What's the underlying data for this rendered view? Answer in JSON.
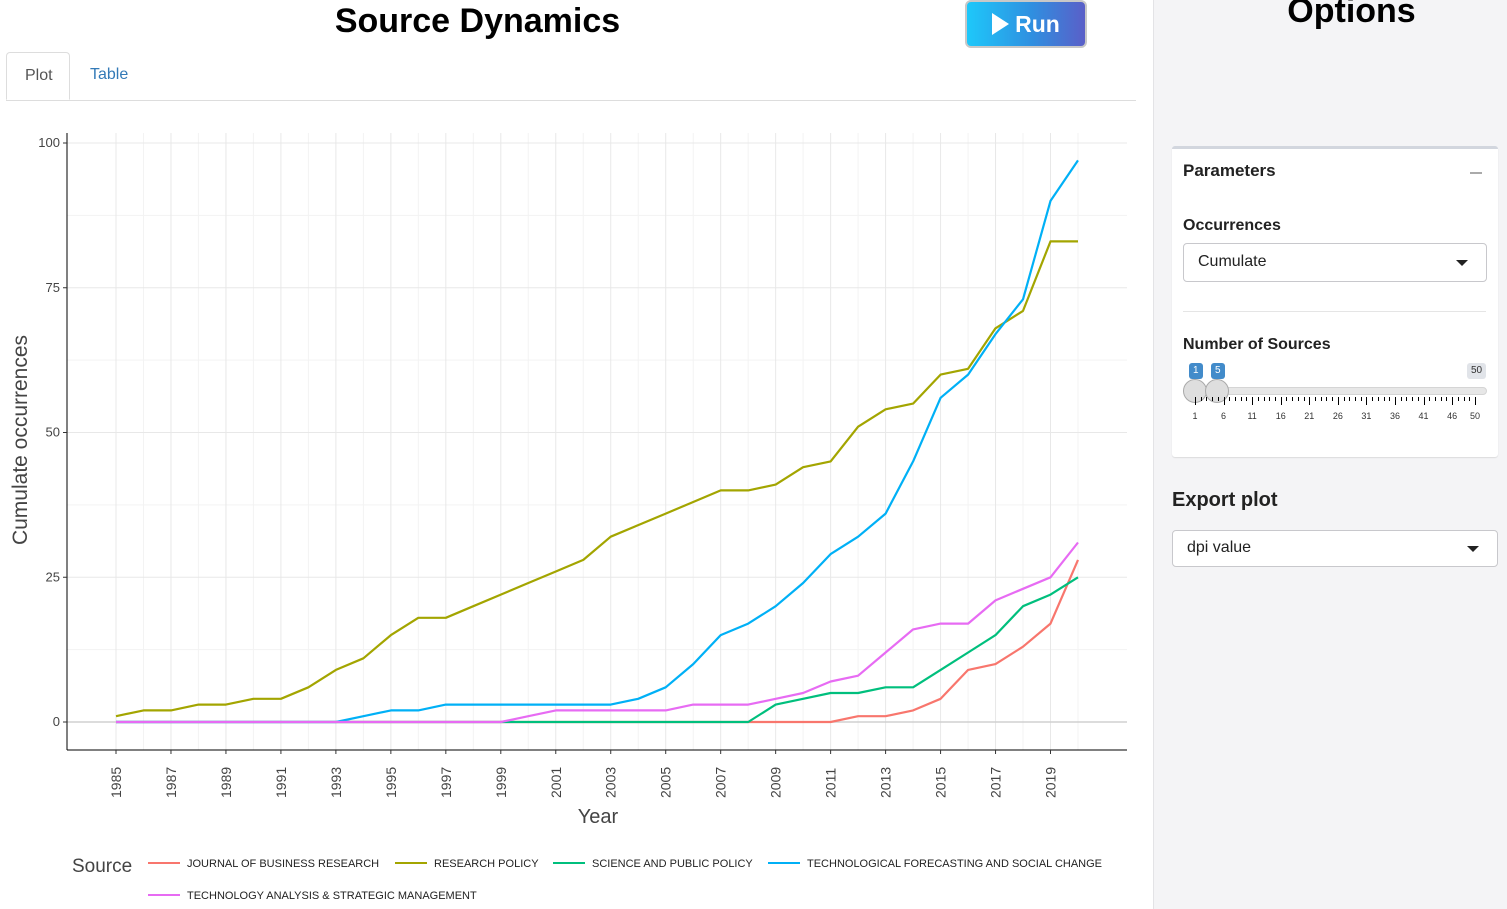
{
  "header": {
    "title": "Source Dynamics",
    "run_label": "Run"
  },
  "tabs": [
    "Plot",
    "Table"
  ],
  "sidebar": {
    "title": "Options",
    "parameters": {
      "title": "Parameters",
      "occurrences_label": "Occurrences",
      "occurrences_value": "Cumulate",
      "num_sources_label": "Number of Sources",
      "slider": {
        "min": 1,
        "max": 50,
        "range": [
          1,
          5
        ],
        "min_label": "1",
        "max_label": "50",
        "low_label": "1",
        "high_label": "5",
        "tick_labels": [
          "1",
          "6",
          "11",
          "16",
          "21",
          "26",
          "31",
          "36",
          "41",
          "46",
          "50"
        ]
      }
    },
    "export": {
      "title": "Export plot",
      "dpi_value": "dpi value"
    }
  },
  "chart_data": {
    "type": "line",
    "xlabel": "Year",
    "ylabel": "Cumulate occurrences",
    "legend_title": "Source",
    "legend_position": "bottom",
    "grid": true,
    "xlim": [
      1985,
      2020
    ],
    "ylim": [
      0,
      100
    ],
    "x_ticks": [
      1985,
      1987,
      1989,
      1991,
      1993,
      1995,
      1997,
      1999,
      2001,
      2003,
      2005,
      2007,
      2009,
      2011,
      2013,
      2015,
      2017,
      2019
    ],
    "y_ticks": [
      0,
      25,
      50,
      75,
      100
    ],
    "x": [
      1985,
      1986,
      1987,
      1988,
      1989,
      1990,
      1991,
      1992,
      1993,
      1994,
      1995,
      1996,
      1997,
      1998,
      1999,
      2000,
      2001,
      2002,
      2003,
      2004,
      2005,
      2006,
      2007,
      2008,
      2009,
      2010,
      2011,
      2012,
      2013,
      2014,
      2015,
      2016,
      2017,
      2018,
      2019,
      2020
    ],
    "series": [
      {
        "name": "JOURNAL OF BUSINESS RESEARCH",
        "color": "#F8766D",
        "values": [
          0,
          0,
          0,
          0,
          0,
          0,
          0,
          0,
          0,
          0,
          0,
          0,
          0,
          0,
          0,
          0,
          0,
          0,
          0,
          0,
          0,
          0,
          0,
          0,
          0,
          0,
          0,
          1,
          1,
          2,
          4,
          9,
          10,
          13,
          17,
          28
        ]
      },
      {
        "name": "RESEARCH POLICY",
        "color": "#A3A500",
        "values": [
          1,
          2,
          2,
          3,
          3,
          4,
          4,
          6,
          9,
          11,
          15,
          18,
          18,
          20,
          22,
          24,
          26,
          28,
          32,
          34,
          36,
          38,
          40,
          40,
          41,
          44,
          45,
          51,
          54,
          55,
          60,
          61,
          68,
          71,
          83,
          83
        ]
      },
      {
        "name": "SCIENCE AND PUBLIC POLICY",
        "color": "#00BF7D",
        "values": [
          0,
          0,
          0,
          0,
          0,
          0,
          0,
          0,
          0,
          0,
          0,
          0,
          0,
          0,
          0,
          0,
          0,
          0,
          0,
          0,
          0,
          0,
          0,
          0,
          3,
          4,
          5,
          5,
          6,
          6,
          9,
          12,
          15,
          20,
          22,
          25
        ]
      },
      {
        "name": "TECHNOLOGICAL FORECASTING AND SOCIAL CHANGE",
        "color": "#00B0F6",
        "values": [
          0,
          0,
          0,
          0,
          0,
          0,
          0,
          0,
          0,
          1,
          2,
          2,
          3,
          3,
          3,
          3,
          3,
          3,
          3,
          4,
          6,
          10,
          15,
          17,
          20,
          24,
          29,
          32,
          36,
          45,
          56,
          60,
          67,
          73,
          90,
          97
        ]
      },
      {
        "name": "TECHNOLOGY ANALYSIS & STRATEGIC MANAGEMENT",
        "color": "#E76BF3",
        "values": [
          0,
          0,
          0,
          0,
          0,
          0,
          0,
          0,
          0,
          0,
          0,
          0,
          0,
          0,
          0,
          1,
          2,
          2,
          2,
          2,
          2,
          3,
          3,
          3,
          4,
          5,
          7,
          8,
          12,
          16,
          17,
          17,
          21,
          23,
          25,
          31
        ]
      }
    ]
  }
}
